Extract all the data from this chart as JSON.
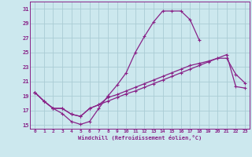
{
  "xlabel": "Windchill (Refroidissement éolien,°C)",
  "background_color": "#cce8ee",
  "grid_color": "#aaccd4",
  "line_color": "#882288",
  "xlim": [
    -0.5,
    23.5
  ],
  "ylim": [
    14.5,
    32
  ],
  "xticks": [
    0,
    1,
    2,
    3,
    4,
    5,
    6,
    7,
    8,
    9,
    10,
    11,
    12,
    13,
    14,
    15,
    16,
    17,
    18,
    19,
    20,
    21,
    22,
    23
  ],
  "yticks": [
    15,
    17,
    19,
    21,
    23,
    25,
    27,
    29,
    31
  ],
  "series1_x": [
    0,
    1,
    2,
    3,
    4,
    5,
    6,
    7,
    8,
    9,
    10,
    11,
    12,
    13,
    14,
    15,
    16,
    17,
    18,
    19,
    20,
    21,
    22,
    23
  ],
  "series1_y": [
    19.5,
    18.3,
    17.3,
    16.6,
    15.5,
    15.1,
    15.5,
    17.3,
    19.0,
    20.5,
    22.2,
    25.0,
    27.2,
    29.2,
    30.7,
    30.7,
    30.7,
    29.5,
    26.7,
    null,
    null,
    null,
    null,
    null
  ],
  "series2_x": [
    0,
    1,
    2,
    3,
    4,
    5,
    6,
    7,
    8,
    9,
    10,
    11,
    12,
    13,
    14,
    15,
    16,
    17,
    18,
    19,
    20,
    21,
    22,
    23
  ],
  "series2_y": [
    19.5,
    18.3,
    17.3,
    17.3,
    16.5,
    16.2,
    17.3,
    17.8,
    18.8,
    19.2,
    19.7,
    20.2,
    20.7,
    21.2,
    21.7,
    22.2,
    22.7,
    23.2,
    23.5,
    23.8,
    24.2,
    24.2,
    22.0,
    20.8
  ],
  "series3_x": [
    0,
    1,
    2,
    3,
    4,
    5,
    6,
    7,
    8,
    9,
    10,
    11,
    12,
    13,
    14,
    15,
    16,
    17,
    18,
    19,
    20,
    21,
    22,
    23
  ],
  "series3_y": [
    19.5,
    18.3,
    17.3,
    17.3,
    16.5,
    16.2,
    17.3,
    17.8,
    18.3,
    18.8,
    19.3,
    19.7,
    20.2,
    20.7,
    21.2,
    21.7,
    22.2,
    22.7,
    23.2,
    23.7,
    24.2,
    24.7,
    20.3,
    20.1
  ]
}
